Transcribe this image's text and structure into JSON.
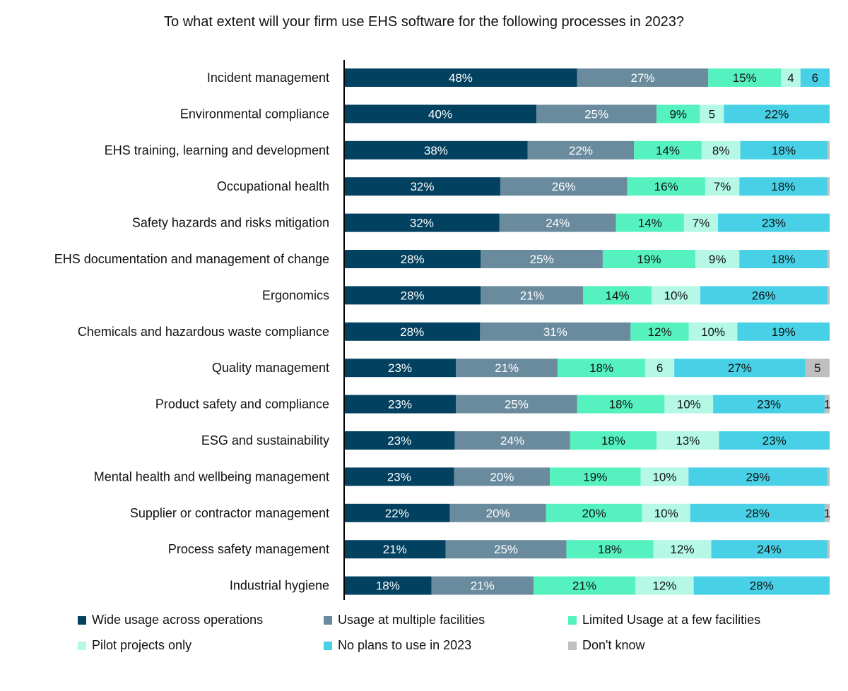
{
  "chart_data": {
    "type": "bar",
    "orientation": "horizontal",
    "stacked": true,
    "title": "To what extent will your firm use EHS software for the following processes in 2023?",
    "categories": [
      "Incident management",
      "Environmental compliance",
      "EHS training, learning and development",
      "Occupational health",
      "Safety hazards and risks mitigation",
      "EHS documentation and management of change",
      "Ergonomics",
      "Chemicals and hazardous waste compliance",
      "Quality management",
      "Product safety and compliance",
      "ESG and sustainability",
      "Mental health and wellbeing management",
      "Supplier or contractor management",
      "Process safety management",
      "Industrial hygiene"
    ],
    "series": [
      {
        "name": "Wide usage across operations",
        "color": "#02415F",
        "values": [
          48,
          40,
          38,
          32,
          32,
          28,
          28,
          28,
          23,
          23,
          23,
          23,
          22,
          21,
          18
        ],
        "labels": [
          "48%",
          "40%",
          "38%",
          "32%",
          "32%",
          "28%",
          "28%",
          "28%",
          "23%",
          "23%",
          "23%",
          "23%",
          "22%",
          "21%",
          "18%"
        ]
      },
      {
        "name": "Usage at multiple facilities",
        "color": "#6A8B9E",
        "values": [
          27,
          25,
          22,
          26,
          24,
          25,
          21,
          31,
          21,
          25,
          24,
          20,
          20,
          25,
          21
        ],
        "labels": [
          "27%",
          "25%",
          "22%",
          "26%",
          "24%",
          "25%",
          "21%",
          "31%",
          "21%",
          "25%",
          "24%",
          "20%",
          "20%",
          "25%",
          "21%"
        ]
      },
      {
        "name": "Limited Usage at a few facilities",
        "color": "#55F2C0",
        "values": [
          15,
          9,
          14,
          16,
          14,
          19,
          14,
          12,
          18,
          18,
          18,
          19,
          20,
          18,
          21
        ],
        "labels": [
          "15%",
          "9%",
          "14%",
          "16%",
          "14%",
          "19%",
          "14%",
          "12%",
          "18%",
          "18%",
          "18%",
          "19%",
          "20%",
          "18%",
          "21%"
        ]
      },
      {
        "name": "Pilot projects only",
        "color": "#B4F8E5",
        "values": [
          4,
          5,
          8,
          7,
          7,
          9,
          10,
          10,
          6,
          10,
          13,
          10,
          10,
          12,
          12
        ],
        "labels": [
          "4",
          "5",
          "8%",
          "7%",
          "7%",
          "9%",
          "10%",
          "10%",
          "6",
          "10%",
          "13%",
          "10%",
          "10%",
          "12%",
          "12%"
        ]
      },
      {
        "name": "No plans to use in 2023",
        "color": "#48D1E6",
        "values": [
          6,
          22,
          18,
          18,
          23,
          18,
          26,
          19,
          27,
          23,
          23,
          29,
          28,
          24,
          28
        ],
        "labels": [
          "6",
          "22%",
          "18%",
          "18%",
          "23%",
          "18%",
          "26%",
          "19%",
          "27%",
          "23%",
          "23%",
          "29%",
          "28%",
          "24%",
          "28%"
        ]
      },
      {
        "name": "Don't know",
        "color": "#BFBFBF",
        "values": [
          0,
          0,
          0.5,
          0.5,
          0,
          0.5,
          0.5,
          0,
          5,
          1,
          0,
          0.5,
          1,
          0.5,
          0
        ],
        "labels": [
          "",
          "",
          "",
          "",
          "",
          "",
          "",
          "",
          "5",
          "1",
          "",
          "",
          "1",
          "",
          ""
        ]
      }
    ],
    "legend_position": "bottom",
    "grid": false
  }
}
